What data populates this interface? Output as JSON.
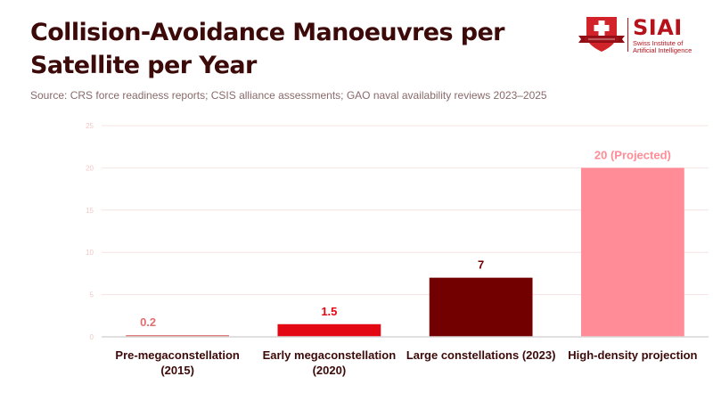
{
  "header": {
    "title": "Collision-Avoidance Manoeuvres per Satellite per Year",
    "source": "Source: CRS force readiness reports; CSIS alliance assessments; GAO naval availability reviews 2023–2025"
  },
  "logo": {
    "name": "SIAI",
    "subtitle_line1": "Swiss Institute of",
    "subtitle_line2": "Artificial Intelligence",
    "icon": "shield-swiss-cross-icon",
    "brand_color": "#b5121b"
  },
  "chart_data": {
    "type": "bar",
    "title": "Collision-Avoidance Manoeuvres per Satellite per Year",
    "xlabel": "",
    "ylabel": "",
    "ylim": [
      0,
      25
    ],
    "yticks": [
      0,
      5,
      10,
      15,
      20,
      25
    ],
    "grid": true,
    "legend": "none",
    "categories": [
      [
        "Pre-megaconstellation",
        "(2015)"
      ],
      [
        "Early megaconstellation",
        "(2020)"
      ],
      [
        "Large constellations (2023)"
      ],
      [
        "High-density projection"
      ]
    ],
    "values": [
      0.2,
      1.5,
      7,
      20
    ],
    "data_labels": [
      "0.2",
      "1.5",
      "7",
      "20 (Projected)"
    ],
    "colors": [
      "#e07070",
      "#e30613",
      "#730000",
      "#ff8c96"
    ],
    "label_colors": [
      "#e07070",
      "#e30613",
      "#730000",
      "#ff8c96"
    ]
  }
}
